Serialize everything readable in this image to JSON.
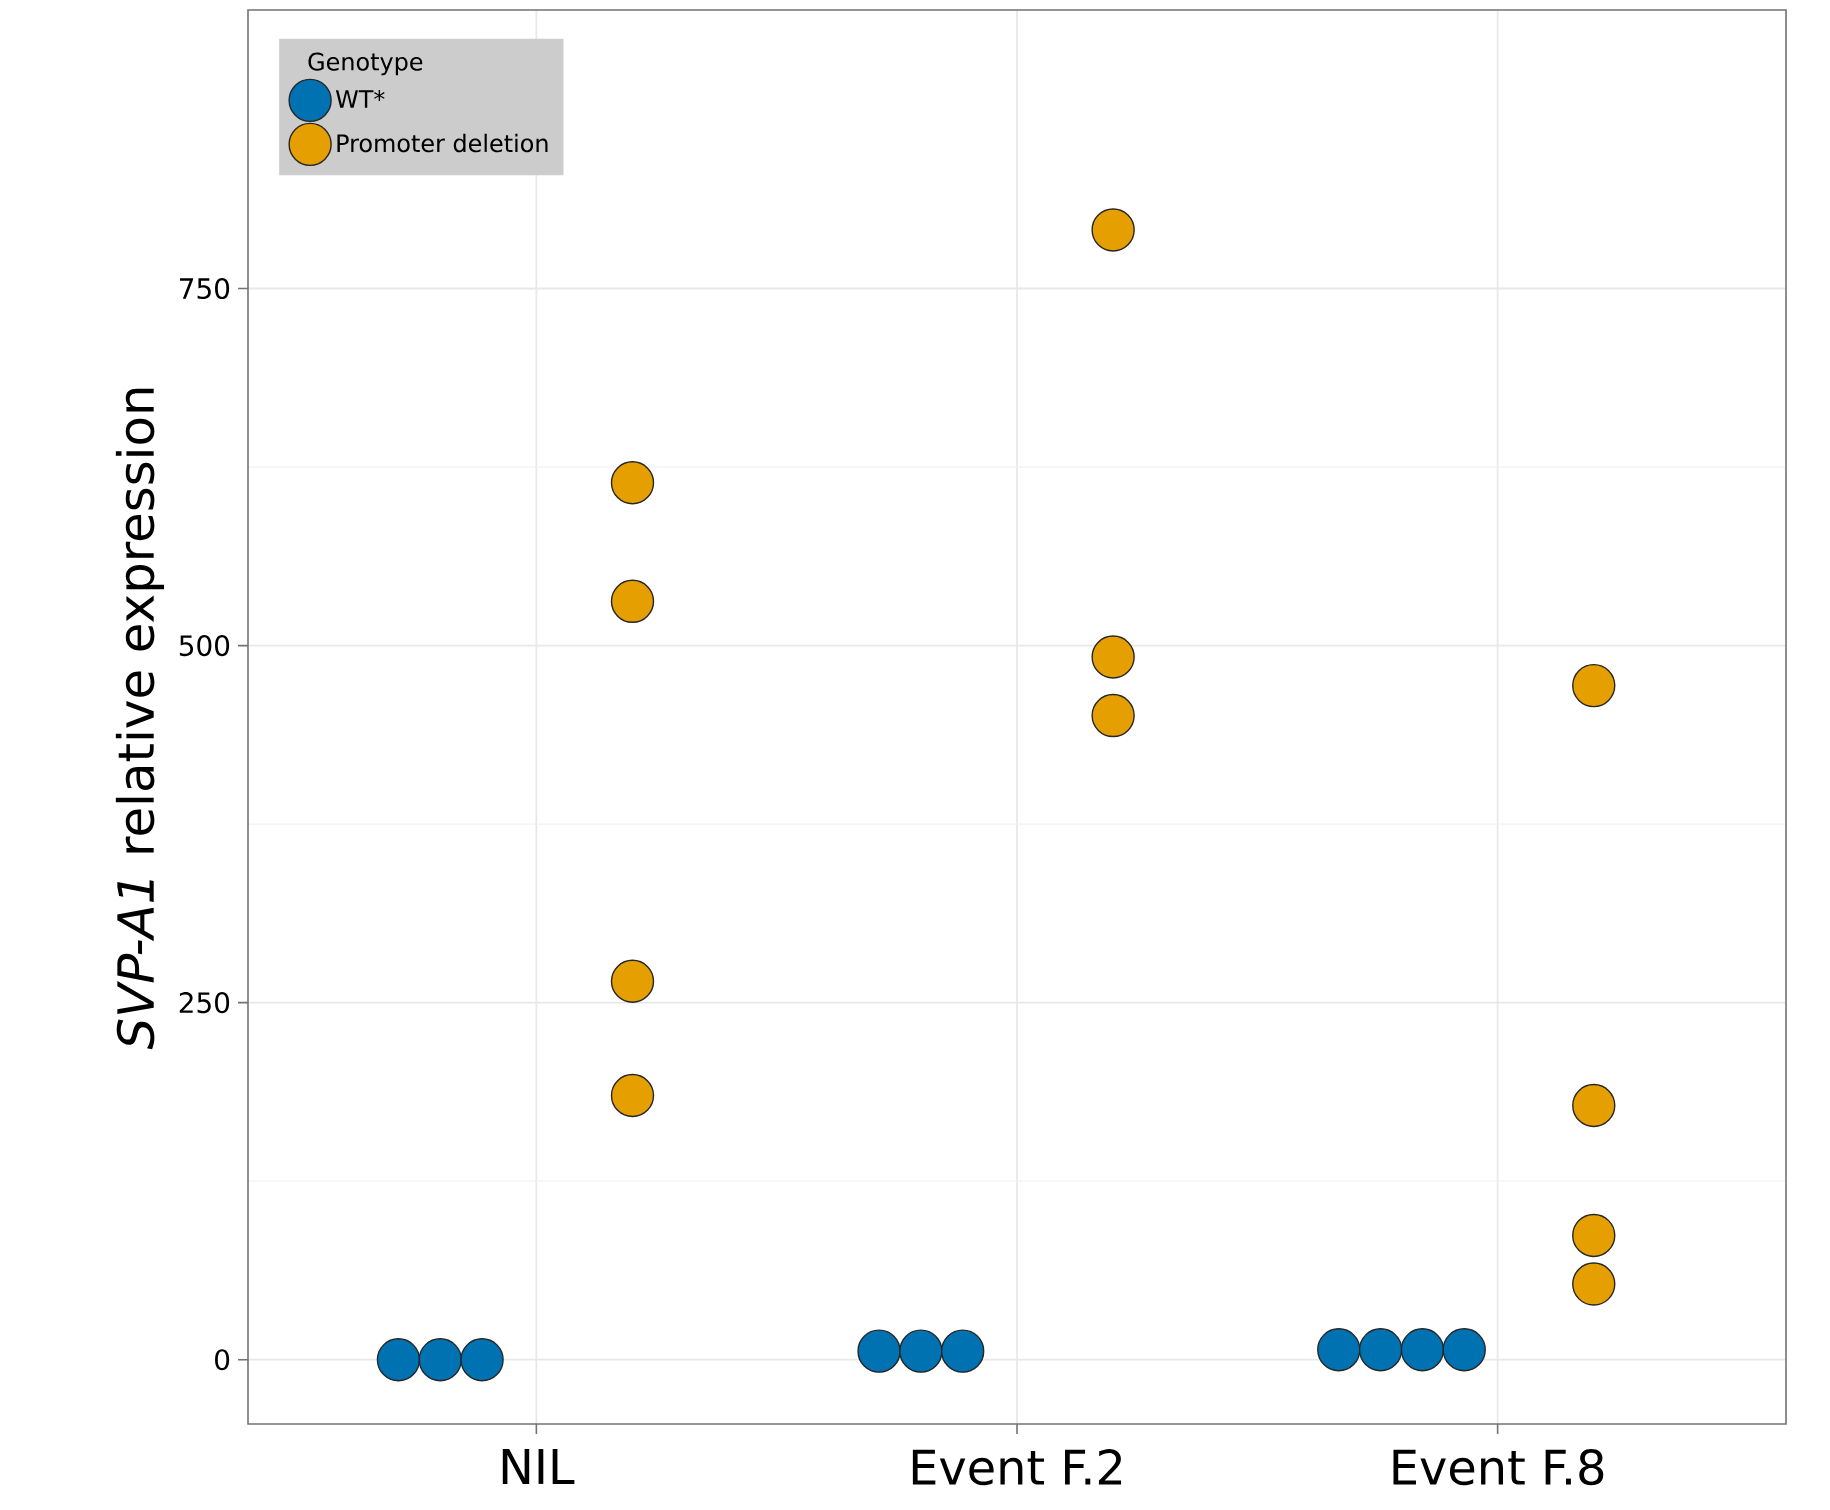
{
  "chart_data": {
    "type": "scatter",
    "ylabel": "*SVP-A1* relative expression",
    "legend_title": "Genotype",
    "categories": [
      "NIL",
      "Event F.2",
      "Event F.8"
    ],
    "series": [
      {
        "name": "WT*",
        "color": "#0072b2",
        "x": [
          "NIL",
          "NIL",
          "NIL",
          "Event F.2",
          "Event F.2",
          "Event F.2",
          "Event F.8",
          "Event F.8",
          "Event F.8",
          "Event F.8"
        ],
        "values": [
          0,
          0,
          0,
          6,
          6,
          6,
          7,
          7,
          7,
          7
        ]
      },
      {
        "name": "Promoter deletion",
        "color": "#e69f00",
        "x": [
          "NIL",
          "NIL",
          "NIL",
          "NIL",
          "Event F.2",
          "Event F.2",
          "Event F.2",
          "Event F.8",
          "Event F.8",
          "Event F.8",
          "Event F.8"
        ],
        "values": [
          614,
          531,
          265,
          185,
          791,
          492,
          451,
          472,
          178,
          87,
          53
        ]
      }
    ],
    "ylim": [
      -45,
      945
    ],
    "yticks": [
      0,
      250,
      500,
      750
    ],
    "grid": true,
    "legend": "top left",
    "marker": "circle"
  }
}
